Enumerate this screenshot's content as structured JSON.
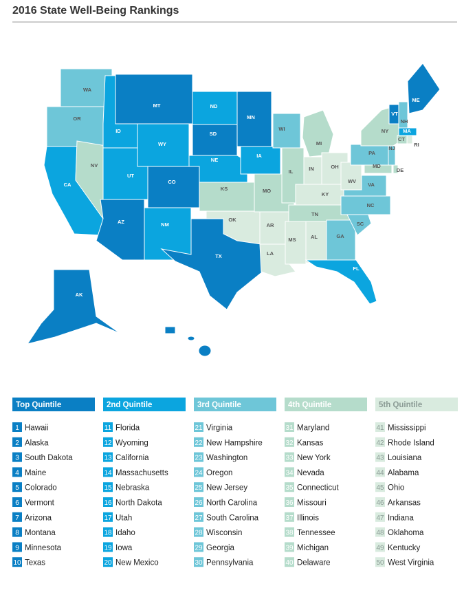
{
  "title": "2016 State Well-Being Rankings",
  "quintiles": [
    {
      "label": "Top Quintile",
      "color": "#0a7fc4",
      "entries": [
        {
          "rank": 1,
          "name": "Hawaii"
        },
        {
          "rank": 2,
          "name": "Alaska"
        },
        {
          "rank": 3,
          "name": "South Dakota"
        },
        {
          "rank": 4,
          "name": "Maine"
        },
        {
          "rank": 5,
          "name": "Colorado"
        },
        {
          "rank": 6,
          "name": "Vermont"
        },
        {
          "rank": 7,
          "name": "Arizona"
        },
        {
          "rank": 8,
          "name": "Montana"
        },
        {
          "rank": 9,
          "name": "Minnesota"
        },
        {
          "rank": 10,
          "name": "Texas"
        }
      ]
    },
    {
      "label": "2nd Quintile",
      "color": "#0ba5df",
      "entries": [
        {
          "rank": 11,
          "name": "Florida"
        },
        {
          "rank": 12,
          "name": "Wyoming"
        },
        {
          "rank": 13,
          "name": "California"
        },
        {
          "rank": 14,
          "name": "Massachusetts"
        },
        {
          "rank": 15,
          "name": "Nebraska"
        },
        {
          "rank": 16,
          "name": "North Dakota"
        },
        {
          "rank": 17,
          "name": "Utah"
        },
        {
          "rank": 18,
          "name": "Idaho"
        },
        {
          "rank": 19,
          "name": "Iowa"
        },
        {
          "rank": 20,
          "name": "New Mexico"
        }
      ]
    },
    {
      "label": "3rd Quintile",
      "color": "#6ec6d8",
      "entries": [
        {
          "rank": 21,
          "name": "Virginia"
        },
        {
          "rank": 22,
          "name": "New Hampshire"
        },
        {
          "rank": 23,
          "name": "Washington"
        },
        {
          "rank": 24,
          "name": "Oregon"
        },
        {
          "rank": 25,
          "name": "New Jersey"
        },
        {
          "rank": 26,
          "name": "North Carolina"
        },
        {
          "rank": 27,
          "name": "South Carolina"
        },
        {
          "rank": 28,
          "name": "Wisconsin"
        },
        {
          "rank": 29,
          "name": "Georgia"
        },
        {
          "rank": 30,
          "name": "Pennsylvania"
        }
      ]
    },
    {
      "label": "4th Quintile",
      "color": "#b5dccb",
      "entries": [
        {
          "rank": 31,
          "name": "Maryland"
        },
        {
          "rank": 32,
          "name": "Kansas"
        },
        {
          "rank": 33,
          "name": "New York"
        },
        {
          "rank": 34,
          "name": "Nevada"
        },
        {
          "rank": 35,
          "name": "Connecticut"
        },
        {
          "rank": 36,
          "name": "Missouri"
        },
        {
          "rank": 37,
          "name": "Illinois"
        },
        {
          "rank": 38,
          "name": "Tennessee"
        },
        {
          "rank": 39,
          "name": "Michigan"
        },
        {
          "rank": 40,
          "name": "Delaware"
        }
      ]
    },
    {
      "label": "5th Quintile",
      "color": "#d9ebdf",
      "entries": [
        {
          "rank": 41,
          "name": "Mississippi"
        },
        {
          "rank": 42,
          "name": "Rhode Island"
        },
        {
          "rank": 43,
          "name": "Louisiana"
        },
        {
          "rank": 44,
          "name": "Alabama"
        },
        {
          "rank": 45,
          "name": "Ohio"
        },
        {
          "rank": 46,
          "name": "Arkansas"
        },
        {
          "rank": 47,
          "name": "Indiana"
        },
        {
          "rank": 48,
          "name": "Oklahoma"
        },
        {
          "rank": 49,
          "name": "Kentucky"
        },
        {
          "rank": 50,
          "name": "West Virginia"
        }
      ]
    }
  ],
  "map_states": [
    {
      "abbr": "WA",
      "quintile": 3
    },
    {
      "abbr": "OR",
      "quintile": 3
    },
    {
      "abbr": "CA",
      "quintile": 2
    },
    {
      "abbr": "NV",
      "quintile": 4
    },
    {
      "abbr": "ID",
      "quintile": 2
    },
    {
      "abbr": "MT",
      "quintile": 1
    },
    {
      "abbr": "WY",
      "quintile": 2
    },
    {
      "abbr": "UT",
      "quintile": 2
    },
    {
      "abbr": "CO",
      "quintile": 1
    },
    {
      "abbr": "AZ",
      "quintile": 1
    },
    {
      "abbr": "NM",
      "quintile": 2
    },
    {
      "abbr": "ND",
      "quintile": 2
    },
    {
      "abbr": "SD",
      "quintile": 1
    },
    {
      "abbr": "NE",
      "quintile": 2
    },
    {
      "abbr": "KS",
      "quintile": 4
    },
    {
      "abbr": "OK",
      "quintile": 5
    },
    {
      "abbr": "TX",
      "quintile": 1
    },
    {
      "abbr": "MN",
      "quintile": 1
    },
    {
      "abbr": "IA",
      "quintile": 2
    },
    {
      "abbr": "MO",
      "quintile": 4
    },
    {
      "abbr": "AR",
      "quintile": 5
    },
    {
      "abbr": "LA",
      "quintile": 5
    },
    {
      "abbr": "WI",
      "quintile": 3
    },
    {
      "abbr": "IL",
      "quintile": 4
    },
    {
      "abbr": "MI",
      "quintile": 4
    },
    {
      "abbr": "IN",
      "quintile": 5
    },
    {
      "abbr": "OH",
      "quintile": 5
    },
    {
      "abbr": "KY",
      "quintile": 5
    },
    {
      "abbr": "TN",
      "quintile": 4
    },
    {
      "abbr": "MS",
      "quintile": 5
    },
    {
      "abbr": "AL",
      "quintile": 5
    },
    {
      "abbr": "GA",
      "quintile": 3
    },
    {
      "abbr": "FL",
      "quintile": 2
    },
    {
      "abbr": "SC",
      "quintile": 3
    },
    {
      "abbr": "NC",
      "quintile": 3
    },
    {
      "abbr": "VA",
      "quintile": 3
    },
    {
      "abbr": "WV",
      "quintile": 5
    },
    {
      "abbr": "PA",
      "quintile": 3
    },
    {
      "abbr": "NY",
      "quintile": 4
    },
    {
      "abbr": "NJ",
      "quintile": 3
    },
    {
      "abbr": "DE",
      "quintile": 4
    },
    {
      "abbr": "MD",
      "quintile": 4
    },
    {
      "abbr": "VT",
      "quintile": 1
    },
    {
      "abbr": "NH",
      "quintile": 3
    },
    {
      "abbr": "ME",
      "quintile": 1
    },
    {
      "abbr": "MA",
      "quintile": 2
    },
    {
      "abbr": "CT",
      "quintile": 4
    },
    {
      "abbr": "RI",
      "quintile": 5
    },
    {
      "abbr": "AK",
      "quintile": 1
    },
    {
      "abbr": "HI",
      "quintile": 1
    }
  ]
}
